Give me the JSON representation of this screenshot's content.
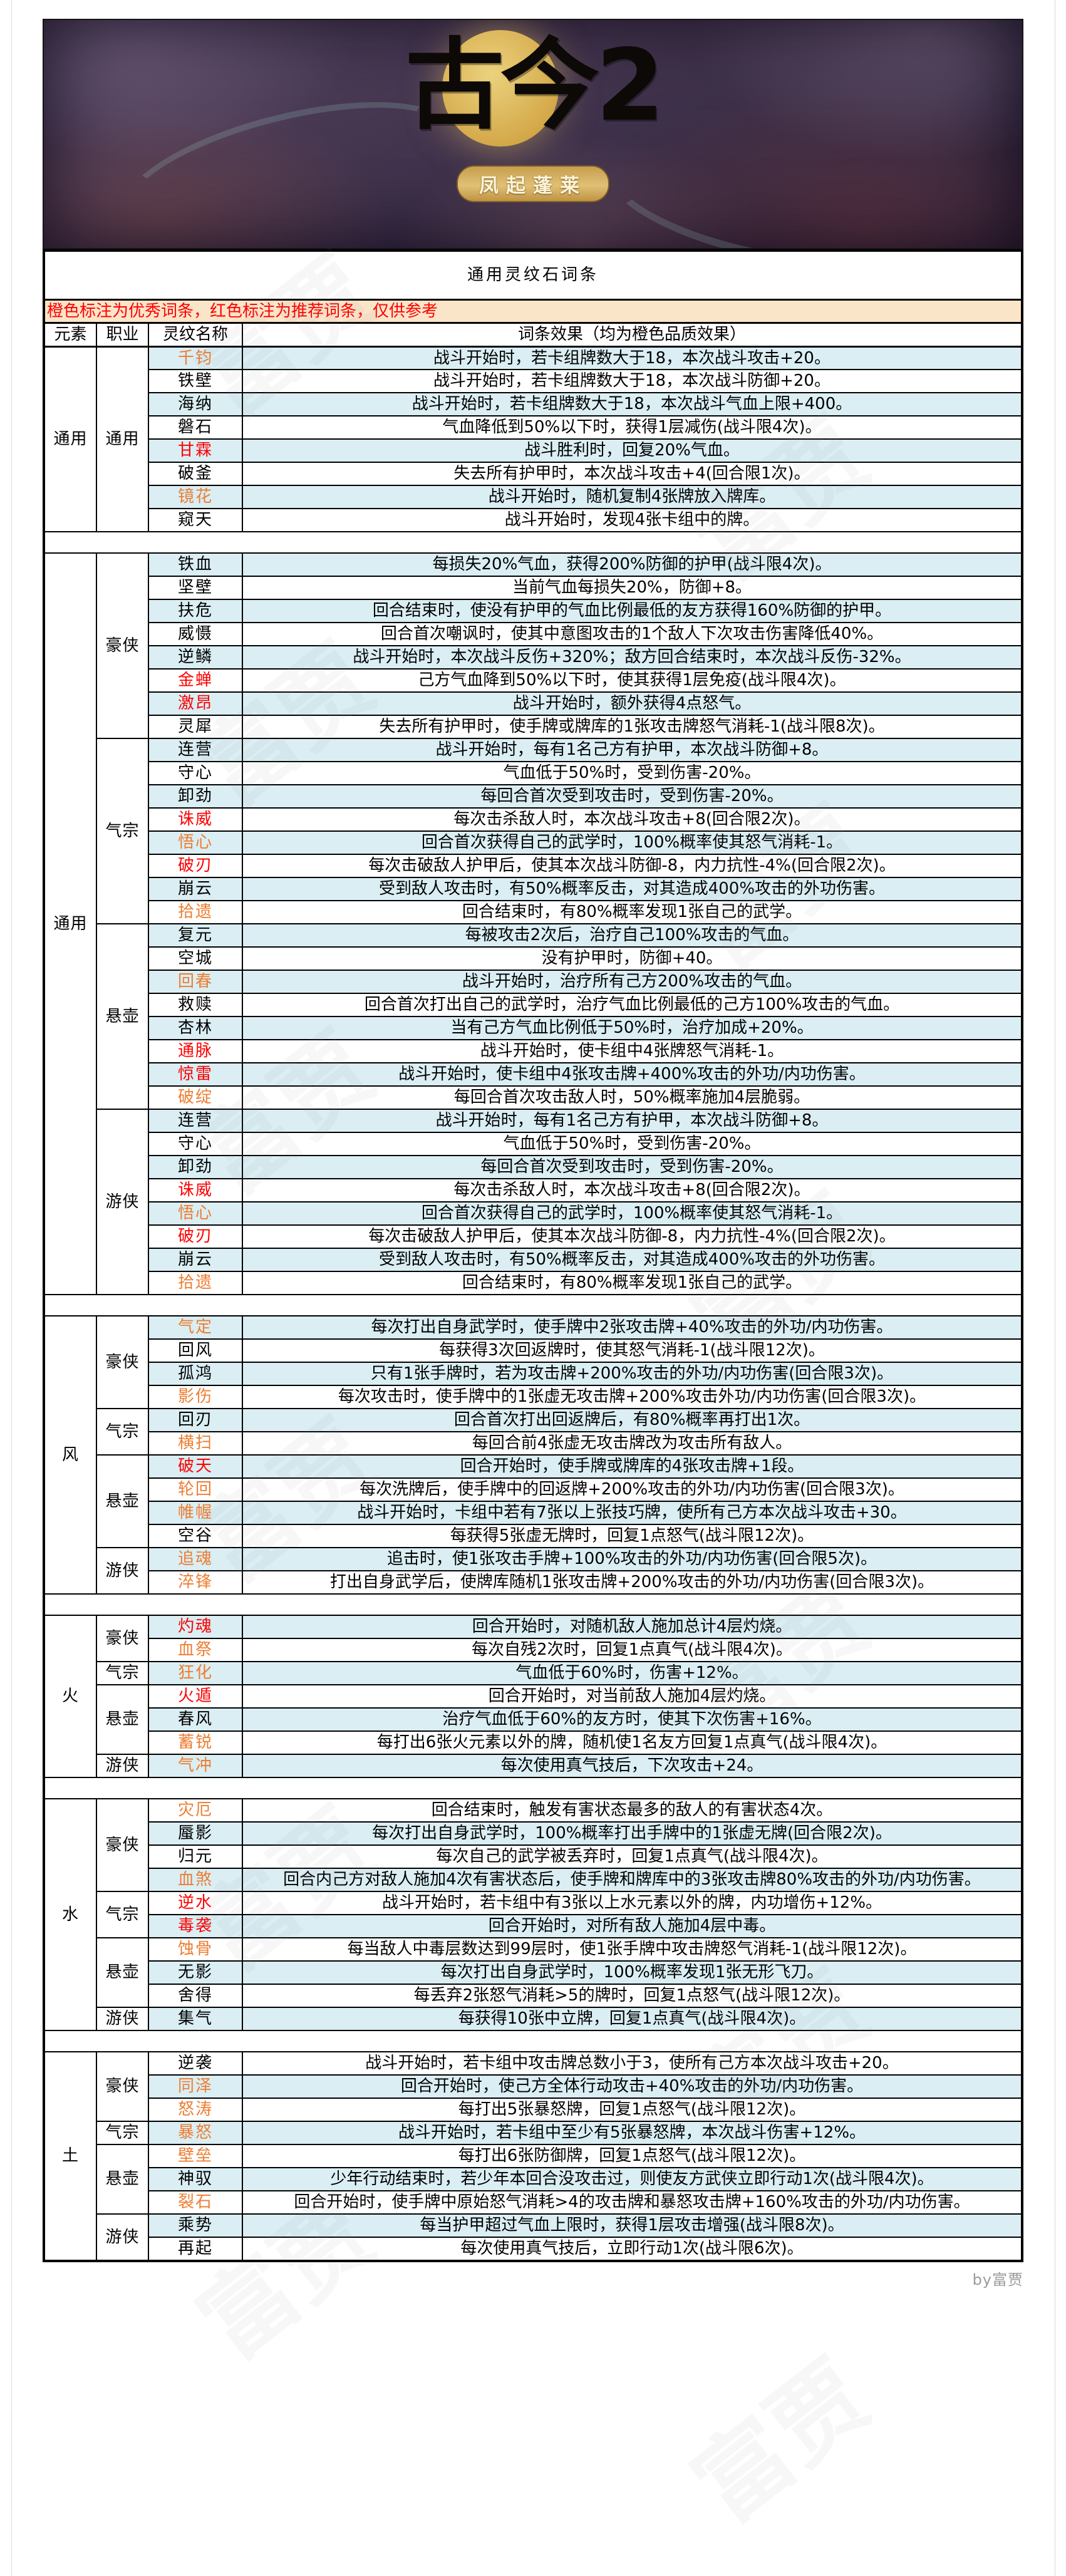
{
  "page": {
    "banner": {
      "title": "古今2",
      "subtitle": "凤起蓬莱"
    },
    "title": "通用灵纹石词条",
    "note": "橙色标注为优秀词条，红色标注为推荐词条，仅供参考",
    "credit": "by富贾",
    "watermark": "富贾"
  },
  "table": {
    "headers": [
      "元素",
      "职业",
      "灵纹名称",
      "词条效果（均为橙色品质效果）"
    ],
    "colors": {
      "excellent": "#ed7d31",
      "recommended": "#ff0000",
      "row_blue": "#daeef3",
      "row_white": "#ffffff",
      "note_bg": "#fbe5c9",
      "border": "#000000"
    },
    "sections": [
      {
        "element": "通用",
        "groups": [
          {
            "job": "通用",
            "rows": [
              {
                "name": "千钧",
                "tier": "excellent",
                "effect": "战斗开始时，若卡组牌数大于18，本次战斗攻击+20。",
                "bg": "b"
              },
              {
                "name": "铁壁",
                "tier": "normal",
                "effect": "战斗开始时，若卡组牌数大于18，本次战斗防御+20。",
                "bg": "w"
              },
              {
                "name": "海纳",
                "tier": "normal",
                "effect": "战斗开始时，若卡组牌数大于18，本次战斗气血上限+400。",
                "bg": "b"
              },
              {
                "name": "磐石",
                "tier": "normal",
                "effect": "气血降低到50%以下时，获得1层减伤(战斗限4次)。",
                "bg": "w"
              },
              {
                "name": "甘霖",
                "tier": "recommended",
                "effect": "战斗胜利时，回复20%气血。",
                "bg": "b"
              },
              {
                "name": "破釜",
                "tier": "normal",
                "effect": "失去所有护甲时，本次战斗攻击+4(回合限1次)。",
                "bg": "w"
              },
              {
                "name": "镜花",
                "tier": "excellent",
                "effect": "战斗开始时，随机复制4张牌放入牌库。",
                "bg": "b"
              },
              {
                "name": "窥天",
                "tier": "normal",
                "effect": "战斗开始时，发现4张卡组中的牌。",
                "bg": "w"
              }
            ]
          }
        ]
      },
      {
        "element": "通用",
        "groups": [
          {
            "job": "豪侠",
            "rows": [
              {
                "name": "铁血",
                "tier": "normal",
                "effect": "每损失20%气血，获得200%防御的护甲(战斗限4次)。",
                "bg": "b"
              },
              {
                "name": "坚壁",
                "tier": "normal",
                "effect": "当前气血每损失20%，防御+8。",
                "bg": "w"
              },
              {
                "name": "扶危",
                "tier": "normal",
                "effect": "回合结束时，使没有护甲的气血比例最低的友方获得160%防御的护甲。",
                "bg": "b"
              },
              {
                "name": "威慑",
                "tier": "normal",
                "effect": "回合首次嘲讽时，使其中意图攻击的1个敌人下次攻击伤害降低40%。",
                "bg": "w"
              },
              {
                "name": "逆鳞",
                "tier": "normal",
                "effect": "战斗开始时，本次战斗反伤+320%；敌方回合结束时，本次战斗反伤-32%。",
                "bg": "b"
              },
              {
                "name": "金蝉",
                "tier": "recommended",
                "effect": "己方气血降到50%以下时，使其获得1层免疫(战斗限4次)。",
                "bg": "w"
              },
              {
                "name": "激昂",
                "tier": "recommended",
                "effect": "战斗开始时，额外获得4点怒气。",
                "bg": "b"
              },
              {
                "name": "灵犀",
                "tier": "normal",
                "effect": "失去所有护甲时，使手牌或牌库的1张攻击牌怒气消耗-1(战斗限8次)。",
                "bg": "w"
              }
            ]
          },
          {
            "job": "气宗",
            "rows": [
              {
                "name": "连营",
                "tier": "normal",
                "effect": "战斗开始时，每有1名己方有护甲，本次战斗防御+8。",
                "bg": "b"
              },
              {
                "name": "守心",
                "tier": "normal",
                "effect": "气血低于50%时，受到伤害-20%。",
                "bg": "w"
              },
              {
                "name": "卸劲",
                "tier": "normal",
                "effect": "每回合首次受到攻击时，受到伤害-20%。",
                "bg": "b"
              },
              {
                "name": "诛威",
                "tier": "recommended",
                "effect": "每次击杀敌人时，本次战斗攻击+8(回合限2次)。",
                "bg": "w"
              },
              {
                "name": "悟心",
                "tier": "excellent",
                "effect": "回合首次获得自己的武学时，100%概率使其怒气消耗-1。",
                "bg": "b"
              },
              {
                "name": "破刃",
                "tier": "recommended",
                "effect": "每次击破敌人护甲后，使其本次战斗防御-8，内力抗性-4%(回合限2次)。",
                "bg": "w"
              },
              {
                "name": "崩云",
                "tier": "normal",
                "effect": "受到敌人攻击时，有50%概率反击，对其造成400%攻击的外功伤害。",
                "bg": "b"
              },
              {
                "name": "拾遗",
                "tier": "excellent",
                "effect": "回合结束时，有80%概率发现1张自己的武学。",
                "bg": "w"
              }
            ]
          },
          {
            "job": "悬壶",
            "rows": [
              {
                "name": "复元",
                "tier": "normal",
                "effect": "每被攻击2次后，治疗自己100%攻击的气血。",
                "bg": "b"
              },
              {
                "name": "空城",
                "tier": "normal",
                "effect": "没有护甲时，防御+40。",
                "bg": "w"
              },
              {
                "name": "回春",
                "tier": "excellent",
                "effect": "战斗开始时，治疗所有己方200%攻击的气血。",
                "bg": "b"
              },
              {
                "name": "救赎",
                "tier": "normal",
                "effect": "回合首次打出自己的武学时，治疗气血比例最低的己方100%攻击的气血。",
                "bg": "w"
              },
              {
                "name": "杏林",
                "tier": "normal",
                "effect": "当有己方气血比例低于50%时，治疗加成+20%。",
                "bg": "b"
              },
              {
                "name": "通脉",
                "tier": "recommended",
                "effect": "战斗开始时，使卡组中4张牌怒气消耗-1。",
                "bg": "w"
              },
              {
                "name": "惊雷",
                "tier": "recommended",
                "effect": "战斗开始时，使卡组中4张攻击牌+400%攻击的外功/内功伤害。",
                "bg": "b"
              },
              {
                "name": "破绽",
                "tier": "excellent",
                "effect": "每回合首次攻击敌人时，50%概率施加4层脆弱。",
                "bg": "w"
              }
            ]
          },
          {
            "job": "游侠",
            "rows": [
              {
                "name": "连营",
                "tier": "normal",
                "effect": "战斗开始时，每有1名己方有护甲，本次战斗防御+8。",
                "bg": "b"
              },
              {
                "name": "守心",
                "tier": "normal",
                "effect": "气血低于50%时，受到伤害-20%。",
                "bg": "w"
              },
              {
                "name": "卸劲",
                "tier": "normal",
                "effect": "每回合首次受到攻击时，受到伤害-20%。",
                "bg": "b"
              },
              {
                "name": "诛威",
                "tier": "recommended",
                "effect": "每次击杀敌人时，本次战斗攻击+8(回合限2次)。",
                "bg": "w"
              },
              {
                "name": "悟心",
                "tier": "excellent",
                "effect": "回合首次获得自己的武学时，100%概率使其怒气消耗-1。",
                "bg": "b"
              },
              {
                "name": "破刃",
                "tier": "recommended",
                "effect": "每次击破敌人护甲后，使其本次战斗防御-8，内力抗性-4%(回合限2次)。",
                "bg": "w"
              },
              {
                "name": "崩云",
                "tier": "normal",
                "effect": "受到敌人攻击时，有50%概率反击，对其造成400%攻击的外功伤害。",
                "bg": "b"
              },
              {
                "name": "拾遗",
                "tier": "excellent",
                "effect": "回合结束时，有80%概率发现1张自己的武学。",
                "bg": "w"
              }
            ]
          }
        ]
      },
      {
        "element": "风",
        "groups": [
          {
            "job": "豪侠",
            "rows": [
              {
                "name": "气定",
                "tier": "excellent",
                "effect": "每次打出自身武学时，使手牌中2张攻击牌+40%攻击的外功/内功伤害。",
                "bg": "b"
              },
              {
                "name": "回风",
                "tier": "normal",
                "effect": "每获得3次回返牌时，使其怒气消耗-1(战斗限12次)。",
                "bg": "w"
              },
              {
                "name": "孤鸿",
                "tier": "normal",
                "effect": "只有1张手牌时，若为攻击牌+200%攻击的外功/内功伤害(回合限3次)。",
                "bg": "b"
              },
              {
                "name": "影伤",
                "tier": "excellent",
                "effect": "每次攻击时，使手牌中的1张虚无攻击牌+200%攻击外功/内功伤害(回合限3次)。",
                "bg": "w"
              }
            ]
          },
          {
            "job": "气宗",
            "rows": [
              {
                "name": "回刃",
                "tier": "normal",
                "effect": "回合首次打出回返牌后，有80%概率再打出1次。",
                "bg": "b"
              },
              {
                "name": "横扫",
                "tier": "excellent",
                "effect": "每回合前4张虚无攻击牌改为攻击所有敌人。",
                "bg": "w"
              }
            ]
          },
          {
            "job": "悬壶",
            "rows": [
              {
                "name": "破天",
                "tier": "recommended",
                "effect": "回合开始时，使手牌或牌库的4张攻击牌+1段。",
                "bg": "b"
              },
              {
                "name": "轮回",
                "tier": "excellent",
                "effect": "每次洗牌后，使手牌中的回返牌+200%攻击的外功/内功伤害(回合限3次)。",
                "bg": "w"
              },
              {
                "name": "帷幄",
                "tier": "excellent",
                "effect": "战斗开始时，卡组中若有7张以上张技巧牌，使所有己方本次战斗攻击+30。",
                "bg": "b"
              },
              {
                "name": "空谷",
                "tier": "normal",
                "effect": "每获得5张虚无牌时，回复1点怒气(战斗限12次)。",
                "bg": "w"
              }
            ]
          },
          {
            "job": "游侠",
            "rows": [
              {
                "name": "追魂",
                "tier": "excellent",
                "effect": "追击时，使1张攻击手牌+100%攻击的外功/内功伤害(回合限5次)。",
                "bg": "b"
              },
              {
                "name": "淬锋",
                "tier": "excellent",
                "effect": "打出自身武学后，使牌库随机1张攻击牌+200%攻击的外功/内功伤害(回合限3次)。",
                "bg": "w"
              }
            ]
          }
        ]
      },
      {
        "element": "火",
        "groups": [
          {
            "job": "豪侠",
            "rows": [
              {
                "name": "灼魂",
                "tier": "recommended",
                "effect": "回合开始时，对随机敌人施加总计4层灼烧。",
                "bg": "b"
              },
              {
                "name": "血祭",
                "tier": "excellent",
                "effect": "每次自残2次时，回复1点真气(战斗限4次)。",
                "bg": "w"
              }
            ]
          },
          {
            "job": "气宗",
            "rows": [
              {
                "name": "狂化",
                "tier": "excellent",
                "effect": "气血低于60%时，伤害+12%。",
                "bg": "b"
              }
            ]
          },
          {
            "job": "悬壶",
            "rows": [
              {
                "name": "火遁",
                "tier": "recommended",
                "effect": "回合开始时，对当前敌人施加4层灼烧。",
                "bg": "w"
              },
              {
                "name": "春风",
                "tier": "normal",
                "effect": "治疗气血低于60%的友方时，使其下次伤害+16%。",
                "bg": "b"
              },
              {
                "name": "蓄锐",
                "tier": "excellent",
                "effect": "每打出6张火元素以外的牌，随机使1名友方回复1点真气(战斗限4次)。",
                "bg": "w"
              }
            ]
          },
          {
            "job": "游侠",
            "rows": [
              {
                "name": "气冲",
                "tier": "excellent",
                "effect": "每次使用真气技后，下次攻击+24。",
                "bg": "b"
              }
            ]
          }
        ]
      },
      {
        "element": "水",
        "groups": [
          {
            "job": "豪侠",
            "rows": [
              {
                "name": "灾厄",
                "tier": "excellent",
                "effect": "回合结束时，触发有害状态最多的敌人的有害状态4次。",
                "bg": "w"
              },
              {
                "name": "蜃影",
                "tier": "normal",
                "effect": "每次打出自身武学时，100%概率打出手牌中的1张虚无牌(回合限2次)。",
                "bg": "b"
              },
              {
                "name": "归元",
                "tier": "normal",
                "effect": "每次自己的武学被丢弃时，回复1点真气(战斗限4次)。",
                "bg": "w"
              },
              {
                "name": "血煞",
                "tier": "excellent",
                "effect": "回合内己方对敌人施加4次有害状态后，使手牌和牌库中的3张攻击牌80%攻击的外功/内功伤害。",
                "bg": "b"
              }
            ]
          },
          {
            "job": "气宗",
            "rows": [
              {
                "name": "逆水",
                "tier": "recommended",
                "effect": "战斗开始时，若卡组中有3张以上水元素以外的牌，内功增伤+12%。",
                "bg": "w"
              },
              {
                "name": "毒袭",
                "tier": "recommended",
                "effect": "回合开始时，对所有敌人施加4层中毒。",
                "bg": "b"
              }
            ]
          },
          {
            "job": "悬壶",
            "rows": [
              {
                "name": "蚀骨",
                "tier": "excellent",
                "effect": "每当敌人中毒层数达到99层时，使1张手牌中攻击牌怒气消耗-1(战斗限12次)。",
                "bg": "w"
              },
              {
                "name": "无影",
                "tier": "normal",
                "effect": "每次打出自身武学时，100%概率发现1张无形飞刀。",
                "bg": "b"
              },
              {
                "name": "舍得",
                "tier": "normal",
                "effect": "每丢弃2张怒气消耗>5的牌时，回复1点怒气(战斗限12次)。",
                "bg": "w"
              }
            ]
          },
          {
            "job": "游侠",
            "rows": [
              {
                "name": "集气",
                "tier": "normal",
                "effect": "每获得10张中立牌，回复1点真气(战斗限4次)。",
                "bg": "b"
              }
            ]
          }
        ]
      },
      {
        "element": "土",
        "groups": [
          {
            "job": "豪侠",
            "rows": [
              {
                "name": "逆袭",
                "tier": "normal",
                "effect": "战斗开始时，若卡组中攻击牌总数小于3，使所有己方本次战斗攻击+20。",
                "bg": "w"
              },
              {
                "name": "同泽",
                "tier": "excellent",
                "effect": "回合开始时，使己方全体行动攻击+40%攻击的外功/内功伤害。",
                "bg": "b"
              },
              {
                "name": "怒涛",
                "tier": "excellent",
                "effect": "每打出5张暴怒牌，回复1点怒气(战斗限12次)。",
                "bg": "w"
              }
            ]
          },
          {
            "job": "气宗",
            "rows": [
              {
                "name": "暴怒",
                "tier": "excellent",
                "effect": "战斗开始时，若卡组中至少有5张暴怒牌，本次战斗伤害+12%。",
                "bg": "b"
              }
            ]
          },
          {
            "job": "悬壶",
            "rows": [
              {
                "name": "壁垒",
                "tier": "excellent",
                "effect": "每打出6张防御牌，回复1点怒气(战斗限12次)。",
                "bg": "w"
              },
              {
                "name": "神驭",
                "tier": "normal",
                "effect": "少年行动结束时，若少年本回合没攻击过，则使友方武侠立即行动1次(战斗限4次)。",
                "bg": "b"
              },
              {
                "name": "裂石",
                "tier": "excellent",
                "effect": "回合开始时，使手牌中原始怒气消耗>4的攻击牌和暴怒攻击牌+160%攻击的外功/内功伤害。",
                "bg": "w"
              }
            ]
          },
          {
            "job": "游侠",
            "rows": [
              {
                "name": "乘势",
                "tier": "normal",
                "effect": "每当护甲超过气血上限时，获得1层攻击增强(战斗限8次)。",
                "bg": "b"
              },
              {
                "name": "再起",
                "tier": "normal",
                "effect": "每次使用真气技后，立即行动1次(战斗限6次)。",
                "bg": "w"
              }
            ]
          }
        ]
      }
    ]
  }
}
